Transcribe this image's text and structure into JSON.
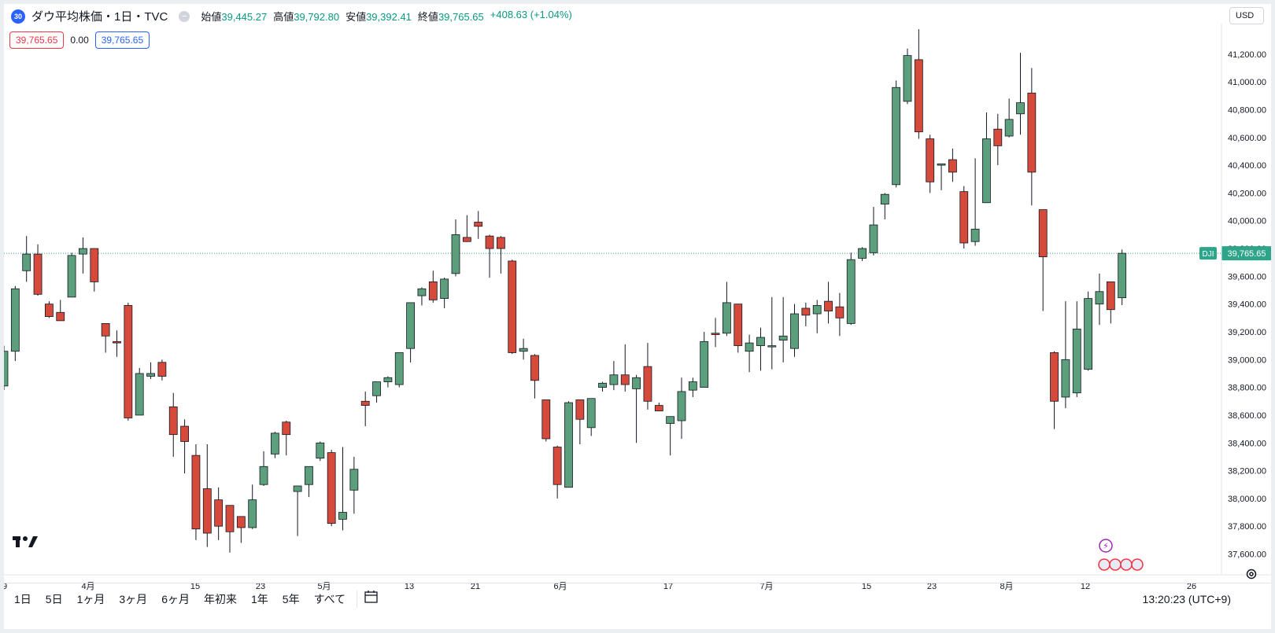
{
  "header": {
    "badge": "30",
    "title": "ダウ平均株価・1日・TVC",
    "collapse": "−",
    "open_label": "始値",
    "open": "39,445.27",
    "high_label": "高値",
    "high": "39,792.80",
    "low_label": "安値",
    "low": "39,392.41",
    "close_label": "終値",
    "close": "39,765.65",
    "change": "+408.63 (+1.04%)"
  },
  "price_boxes": {
    "sell": "39,765.65",
    "spread": "0.00",
    "buy": "39,765.65"
  },
  "currency": "USD",
  "symbol_tag": "DJI",
  "last_price_label": "39,765.65",
  "time_labels": [
    "9",
    "4月",
    "15",
    "23",
    "5月",
    "13",
    "21",
    "6月",
    "17",
    "7月",
    "15",
    "23",
    "8月",
    "12",
    "26"
  ],
  "range_buttons": [
    "1日",
    "5日",
    "1ヶ月",
    "3ヶ月",
    "6ヶ月",
    "年初来",
    "1年",
    "5年",
    "すべて"
  ],
  "clock": "13:20:23 (UTC+9)",
  "icons": {
    "logo": "tradingview-logo-icon",
    "calendar": "calendar-range-icon",
    "settings": "gear-icon",
    "event": "lightning-event-icon",
    "flags": "us-flag-event-icon"
  },
  "colors": {
    "up": "#5b9f7c",
    "down": "#d64a3c",
    "last_line": "#2ea58a"
  },
  "chart_data": {
    "type": "candlestick",
    "ylim": [
      37450,
      41420
    ],
    "y_ticks": [
      "37,600.00",
      "37,800.00",
      "38,000.00",
      "38,200.00",
      "38,400.00",
      "38,600.00",
      "38,800.00",
      "39,000.00",
      "39,200.00",
      "39,400.00",
      "39,600.00",
      "39,800.00",
      "40,000.00",
      "40,200.00",
      "40,400.00",
      "40,600.00",
      "40,800.00",
      "41,000.00",
      "41,200.00"
    ],
    "y_tick_values": [
      37600,
      37800,
      38000,
      38200,
      38400,
      38600,
      38800,
      39000,
      39200,
      39400,
      39600,
      39800,
      40000,
      40200,
      40400,
      40600,
      40800,
      41000,
      41200
    ],
    "last_price": 39765.65,
    "candles": [
      {
        "o": 38810,
        "h": 39100,
        "l": 38780,
        "c": 39060
      },
      {
        "o": 39060,
        "h": 39530,
        "l": 38990,
        "c": 39510
      },
      {
        "o": 39640,
        "h": 39890,
        "l": 39560,
        "c": 39760
      },
      {
        "o": 39760,
        "h": 39830,
        "l": 39460,
        "c": 39470
      },
      {
        "o": 39400,
        "h": 39420,
        "l": 39300,
        "c": 39310
      },
      {
        "o": 39340,
        "h": 39430,
        "l": 39280,
        "c": 39280
      },
      {
        "o": 39450,
        "h": 39770,
        "l": 39450,
        "c": 39750
      },
      {
        "o": 39760,
        "h": 39880,
        "l": 39620,
        "c": 39800
      },
      {
        "o": 39800,
        "h": 39800,
        "l": 39490,
        "c": 39560
      },
      {
        "o": 39260,
        "h": 39260,
        "l": 39050,
        "c": 39170
      },
      {
        "o": 39130,
        "h": 39210,
        "l": 39020,
        "c": 39120
      },
      {
        "o": 39390,
        "h": 39410,
        "l": 38560,
        "c": 38580
      },
      {
        "o": 38600,
        "h": 38940,
        "l": 38600,
        "c": 38900
      },
      {
        "o": 38880,
        "h": 38980,
        "l": 38860,
        "c": 38900
      },
      {
        "o": 38980,
        "h": 39000,
        "l": 38850,
        "c": 38880
      },
      {
        "o": 38660,
        "h": 38760,
        "l": 38300,
        "c": 38460
      },
      {
        "o": 38520,
        "h": 38570,
        "l": 38180,
        "c": 38410
      },
      {
        "o": 38310,
        "h": 38390,
        "l": 37700,
        "c": 37780
      },
      {
        "o": 38070,
        "h": 38390,
        "l": 37650,
        "c": 37750
      },
      {
        "o": 37990,
        "h": 38080,
        "l": 37700,
        "c": 37800
      },
      {
        "o": 37950,
        "h": 37950,
        "l": 37610,
        "c": 37760
      },
      {
        "o": 37870,
        "h": 37870,
        "l": 37680,
        "c": 37790
      },
      {
        "o": 37790,
        "h": 38100,
        "l": 37780,
        "c": 37990
      },
      {
        "o": 38100,
        "h": 38340,
        "l": 38090,
        "c": 38230
      },
      {
        "o": 38320,
        "h": 38480,
        "l": 38290,
        "c": 38470
      },
      {
        "o": 38550,
        "h": 38560,
        "l": 38310,
        "c": 38460
      },
      {
        "o": 38050,
        "h": 38060,
        "l": 37730,
        "c": 38090
      },
      {
        "o": 38100,
        "h": 38220,
        "l": 38010,
        "c": 38230
      },
      {
        "o": 38290,
        "h": 38410,
        "l": 38270,
        "c": 38400
      },
      {
        "o": 38330,
        "h": 38350,
        "l": 37800,
        "c": 37820
      },
      {
        "o": 37850,
        "h": 38370,
        "l": 37770,
        "c": 37900
      },
      {
        "o": 38060,
        "h": 38300,
        "l": 37890,
        "c": 38210
      },
      {
        "o": 38700,
        "h": 38770,
        "l": 38520,
        "c": 38670
      },
      {
        "o": 38740,
        "h": 38840,
        "l": 38690,
        "c": 38840
      },
      {
        "o": 38840,
        "h": 38880,
        "l": 38800,
        "c": 38870
      },
      {
        "o": 38820,
        "h": 39030,
        "l": 38800,
        "c": 39050
      },
      {
        "o": 39080,
        "h": 39400,
        "l": 38980,
        "c": 39410
      },
      {
        "o": 39460,
        "h": 39520,
        "l": 39390,
        "c": 39510
      },
      {
        "o": 39560,
        "h": 39640,
        "l": 39410,
        "c": 39430
      },
      {
        "o": 39440,
        "h": 39590,
        "l": 39370,
        "c": 39580
      },
      {
        "o": 39620,
        "h": 40010,
        "l": 39600,
        "c": 39900
      },
      {
        "o": 39880,
        "h": 40040,
        "l": 39860,
        "c": 39850
      },
      {
        "o": 39990,
        "h": 40070,
        "l": 39870,
        "c": 39960
      },
      {
        "o": 39890,
        "h": 39900,
        "l": 39590,
        "c": 39800
      },
      {
        "o": 39880,
        "h": 39890,
        "l": 39620,
        "c": 39800
      },
      {
        "o": 39710,
        "h": 39720,
        "l": 39040,
        "c": 39050
      },
      {
        "o": 39060,
        "h": 39150,
        "l": 39000,
        "c": 39080
      },
      {
        "o": 39030,
        "h": 39040,
        "l": 38720,
        "c": 38850
      },
      {
        "o": 38710,
        "h": 38710,
        "l": 38410,
        "c": 38430
      },
      {
        "o": 38370,
        "h": 38380,
        "l": 38000,
        "c": 38100
      },
      {
        "o": 38080,
        "h": 38700,
        "l": 38080,
        "c": 38690
      },
      {
        "o": 38710,
        "h": 38710,
        "l": 38390,
        "c": 38570
      },
      {
        "o": 38510,
        "h": 38710,
        "l": 38450,
        "c": 38720
      },
      {
        "o": 38800,
        "h": 38840,
        "l": 38770,
        "c": 38830
      },
      {
        "o": 38820,
        "h": 38990,
        "l": 38780,
        "c": 38890
      },
      {
        "o": 38890,
        "h": 39110,
        "l": 38770,
        "c": 38820
      },
      {
        "o": 38790,
        "h": 38890,
        "l": 38400,
        "c": 38870
      },
      {
        "o": 38950,
        "h": 39120,
        "l": 38640,
        "c": 38700
      },
      {
        "o": 38670,
        "h": 38690,
        "l": 38630,
        "c": 38630
      },
      {
        "o": 38540,
        "h": 38590,
        "l": 38310,
        "c": 38590
      },
      {
        "o": 38560,
        "h": 38870,
        "l": 38430,
        "c": 38770
      },
      {
        "o": 38780,
        "h": 38870,
        "l": 38730,
        "c": 38840
      },
      {
        "o": 38800,
        "h": 39200,
        "l": 38800,
        "c": 39130
      },
      {
        "o": 39190,
        "h": 39300,
        "l": 39090,
        "c": 39180
      },
      {
        "o": 39190,
        "h": 39560,
        "l": 39170,
        "c": 39410
      },
      {
        "o": 39400,
        "h": 39400,
        "l": 39050,
        "c": 39100
      },
      {
        "o": 39060,
        "h": 39180,
        "l": 38910,
        "c": 39120
      },
      {
        "o": 39100,
        "h": 39230,
        "l": 38920,
        "c": 39160
      },
      {
        "o": 39100,
        "h": 39450,
        "l": 38930,
        "c": 39100
      },
      {
        "o": 39140,
        "h": 39450,
        "l": 38980,
        "c": 39170
      },
      {
        "o": 39080,
        "h": 39400,
        "l": 39020,
        "c": 39330
      },
      {
        "o": 39370,
        "h": 39410,
        "l": 39240,
        "c": 39320
      },
      {
        "o": 39330,
        "h": 39430,
        "l": 39190,
        "c": 39390
      },
      {
        "o": 39420,
        "h": 39560,
        "l": 39260,
        "c": 39350
      },
      {
        "o": 39380,
        "h": 39480,
        "l": 39170,
        "c": 39300
      },
      {
        "o": 39260,
        "h": 39770,
        "l": 39250,
        "c": 39720
      },
      {
        "o": 39730,
        "h": 39810,
        "l": 39710,
        "c": 39800
      },
      {
        "o": 39770,
        "h": 40100,
        "l": 39750,
        "c": 39970
      },
      {
        "o": 40120,
        "h": 40200,
        "l": 40010,
        "c": 40190
      },
      {
        "o": 40260,
        "h": 41010,
        "l": 40240,
        "c": 40960
      },
      {
        "o": 40860,
        "h": 41240,
        "l": 40840,
        "c": 41190
      },
      {
        "o": 41160,
        "h": 41380,
        "l": 40590,
        "c": 40640
      },
      {
        "o": 40590,
        "h": 40620,
        "l": 40200,
        "c": 40280
      },
      {
        "o": 40400,
        "h": 40400,
        "l": 40220,
        "c": 40410
      },
      {
        "o": 40440,
        "h": 40520,
        "l": 40280,
        "c": 40350
      },
      {
        "o": 40210,
        "h": 40250,
        "l": 39800,
        "c": 39840
      },
      {
        "o": 39850,
        "h": 40450,
        "l": 39820,
        "c": 39940
      },
      {
        "o": 40130,
        "h": 40780,
        "l": 40130,
        "c": 40590
      },
      {
        "o": 40660,
        "h": 40770,
        "l": 40400,
        "c": 40540
      },
      {
        "o": 40610,
        "h": 40880,
        "l": 40600,
        "c": 40730
      },
      {
        "o": 40770,
        "h": 41210,
        "l": 40620,
        "c": 40850
      },
      {
        "o": 40920,
        "h": 41100,
        "l": 40110,
        "c": 40350
      },
      {
        "o": 40080,
        "h": 40080,
        "l": 39350,
        "c": 39740
      },
      {
        "o": 39050,
        "h": 39060,
        "l": 38500,
        "c": 38700
      },
      {
        "o": 38730,
        "h": 39420,
        "l": 38650,
        "c": 39000
      },
      {
        "o": 38760,
        "h": 39420,
        "l": 38730,
        "c": 39220
      },
      {
        "o": 38930,
        "h": 39490,
        "l": 38920,
        "c": 39440
      },
      {
        "o": 39400,
        "h": 39620,
        "l": 39250,
        "c": 39490
      },
      {
        "o": 39560,
        "h": 39560,
        "l": 39260,
        "c": 39360
      },
      {
        "o": 39445.27,
        "h": 39792.8,
        "l": 39392.41,
        "c": 39765.65
      }
    ]
  }
}
